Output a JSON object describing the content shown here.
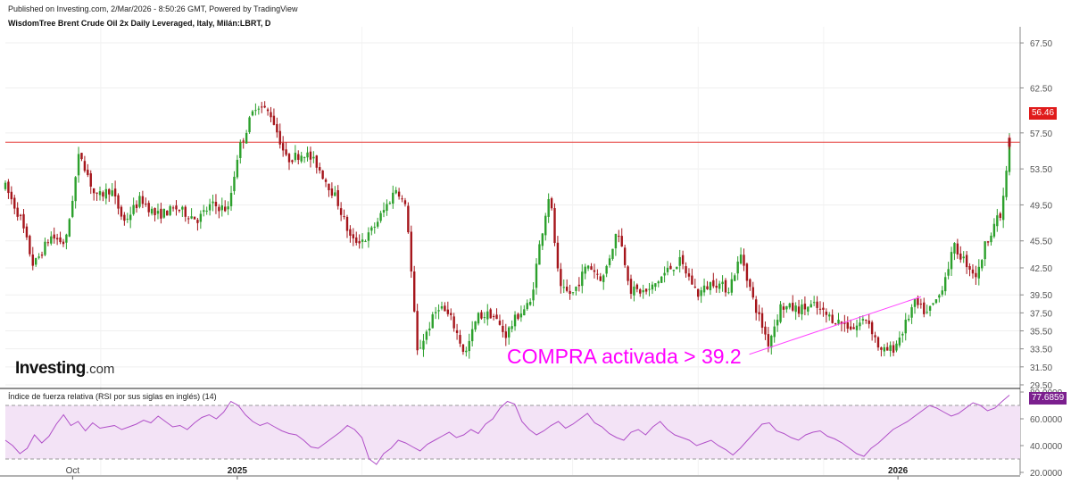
{
  "header": {
    "published": "Published on Investing.com, 2/Mar/2026 - 8:50:26 GMT, Powered by TradingView",
    "symbol": "WisdomTree Brent Crude Oil 2x Daily Leveraged, Italy, Milán:LBRT, D"
  },
  "logo": {
    "main": "Investing",
    "suffix": ".com"
  },
  "annotation": {
    "text": "COMPRA activada > 39.2"
  },
  "rsi": {
    "title": "Índice de fuerza relativa (RSI por sus siglas en inglés) (14)"
  },
  "colors": {
    "up": "#2ca02c",
    "down": "#a5151b",
    "hline": "#e53935",
    "rsi": "#b04fc8",
    "rsi_band": "#f3e3f6",
    "annotation": "#ff00ff",
    "trend": "#ff44ff"
  },
  "chart_data": [
    {
      "type": "candlestick",
      "title": "WisdomTree Brent Crude Oil 2x Daily Leveraged, Italy, Milán:LBRT, D",
      "x_labels": [
        {
          "label": "Oct",
          "t": 0.067
        },
        {
          "label": "2025",
          "t": 0.231
        },
        {
          "label": "2026",
          "t": 0.889
        }
      ],
      "y_ticks": [
        "67.50",
        "62.50",
        "57.50",
        "53.50",
        "49.50",
        "45.50",
        "42.50",
        "39.50",
        "37.50",
        "35.50",
        "33.50",
        "31.50",
        "29.50"
      ],
      "ylim": [
        29.2,
        68.3
      ],
      "last_price": "56.46",
      "last_price_value": 56.46,
      "horizontal_line": 56.46,
      "trendline": [
        {
          "t": 0.741,
          "v": 32.9
        },
        {
          "t": 0.912,
          "v": 39.3
        }
      ],
      "segments": [
        {
          "t": 0.0,
          "v": 51.5
        },
        {
          "t": 0.015,
          "v": 48.0
        },
        {
          "t": 0.028,
          "v": 42.7
        },
        {
          "t": 0.045,
          "v": 46.0
        },
        {
          "t": 0.06,
          "v": 45.2
        },
        {
          "t": 0.074,
          "v": 55.5
        },
        {
          "t": 0.09,
          "v": 50.2
        },
        {
          "t": 0.105,
          "v": 51.3
        },
        {
          "t": 0.118,
          "v": 47.6
        },
        {
          "t": 0.135,
          "v": 50.2
        },
        {
          "t": 0.15,
          "v": 48.3
        },
        {
          "t": 0.17,
          "v": 49.1
        },
        {
          "t": 0.192,
          "v": 47.9
        },
        {
          "t": 0.205,
          "v": 49.5
        },
        {
          "t": 0.222,
          "v": 49.0
        },
        {
          "t": 0.232,
          "v": 55.5
        },
        {
          "t": 0.25,
          "v": 60.8
        },
        {
          "t": 0.265,
          "v": 59.5
        },
        {
          "t": 0.28,
          "v": 54.5
        },
        {
          "t": 0.298,
          "v": 55.3
        },
        {
          "t": 0.31,
          "v": 54.0
        },
        {
          "t": 0.33,
          "v": 50.1
        },
        {
          "t": 0.345,
          "v": 45.4
        },
        {
          "t": 0.36,
          "v": 45.8
        },
        {
          "t": 0.375,
          "v": 48.5
        },
        {
          "t": 0.39,
          "v": 51.5
        },
        {
          "t": 0.4,
          "v": 48.7
        },
        {
          "t": 0.41,
          "v": 33.0
        },
        {
          "t": 0.42,
          "v": 35.5
        },
        {
          "t": 0.432,
          "v": 38.4
        },
        {
          "t": 0.445,
          "v": 36.6
        },
        {
          "t": 0.458,
          "v": 32.8
        },
        {
          "t": 0.47,
          "v": 37.1
        },
        {
          "t": 0.485,
          "v": 37.4
        },
        {
          "t": 0.498,
          "v": 35.0
        },
        {
          "t": 0.51,
          "v": 37.2
        },
        {
          "t": 0.523,
          "v": 38.6
        },
        {
          "t": 0.532,
          "v": 45.0
        },
        {
          "t": 0.542,
          "v": 51.0
        },
        {
          "t": 0.552,
          "v": 40.0
        },
        {
          "t": 0.565,
          "v": 39.6
        },
        {
          "t": 0.58,
          "v": 42.9
        },
        {
          "t": 0.595,
          "v": 41.2
        },
        {
          "t": 0.61,
          "v": 46.9
        },
        {
          "t": 0.623,
          "v": 40.0
        },
        {
          "t": 0.64,
          "v": 39.8
        },
        {
          "t": 0.66,
          "v": 42.3
        },
        {
          "t": 0.672,
          "v": 43.2
        },
        {
          "t": 0.69,
          "v": 39.6
        },
        {
          "t": 0.705,
          "v": 41.0
        },
        {
          "t": 0.72,
          "v": 40.1
        },
        {
          "t": 0.733,
          "v": 44.0
        },
        {
          "t": 0.745,
          "v": 38.8
        },
        {
          "t": 0.76,
          "v": 34.1
        },
        {
          "t": 0.772,
          "v": 38.2
        },
        {
          "t": 0.79,
          "v": 37.9
        },
        {
          "t": 0.805,
          "v": 38.3
        },
        {
          "t": 0.818,
          "v": 37.2
        },
        {
          "t": 0.832,
          "v": 36.4
        },
        {
          "t": 0.845,
          "v": 35.8
        },
        {
          "t": 0.858,
          "v": 37.0
        },
        {
          "t": 0.872,
          "v": 33.1
        },
        {
          "t": 0.885,
          "v": 33.6
        },
        {
          "t": 0.895,
          "v": 35.8
        },
        {
          "t": 0.905,
          "v": 38.6
        },
        {
          "t": 0.918,
          "v": 37.4
        },
        {
          "t": 0.93,
          "v": 39.4
        },
        {
          "t": 0.945,
          "v": 44.8
        },
        {
          "t": 0.958,
          "v": 42.9
        },
        {
          "t": 0.968,
          "v": 41.5
        },
        {
          "t": 0.975,
          "v": 44.8
        },
        {
          "t": 0.985,
          "v": 47.5
        },
        {
          "t": 0.992,
          "v": 48.3
        },
        {
          "t": 1.0,
          "v": 56.46
        }
      ]
    },
    {
      "type": "line",
      "title": "Índice de fuerza relativa (RSI por sus siglas en inglés) (14)",
      "y_ticks": [
        "80.0000",
        "60.0000",
        "40.0000",
        "20.0000"
      ],
      "ylim": [
        18,
        82
      ],
      "band": [
        30,
        70
      ],
      "last_value": "77.6859",
      "last_value_num": 77.6859,
      "values": [
        44,
        40,
        34,
        38,
        48,
        42,
        47,
        56,
        63,
        55,
        58,
        51,
        57,
        53,
        54,
        55,
        52,
        54,
        56,
        59,
        57,
        62,
        58,
        54,
        55,
        52,
        57,
        61,
        63,
        60,
        65,
        73,
        70,
        63,
        58,
        55,
        57,
        54,
        51,
        49,
        48,
        44,
        39,
        38,
        42,
        46,
        50,
        55,
        52,
        46,
        30,
        26,
        34,
        38,
        44,
        42,
        39,
        36,
        41,
        44,
        47,
        50,
        46,
        48,
        52,
        49,
        56,
        60,
        68,
        73,
        71,
        58,
        52,
        48,
        51,
        55,
        58,
        53,
        56,
        60,
        64,
        57,
        54,
        49,
        46,
        44,
        50,
        52,
        48,
        54,
        58,
        52,
        48,
        46,
        44,
        40,
        42,
        44,
        40,
        37,
        33,
        38,
        44,
        50,
        56,
        57,
        51,
        49,
        46,
        44,
        48,
        50,
        51,
        47,
        45,
        42,
        38,
        34,
        32,
        38,
        42,
        47,
        52,
        55,
        58,
        62,
        66,
        70,
        68,
        65,
        62,
        64,
        68,
        72,
        70,
        66,
        68,
        73,
        77.69
      ]
    }
  ]
}
